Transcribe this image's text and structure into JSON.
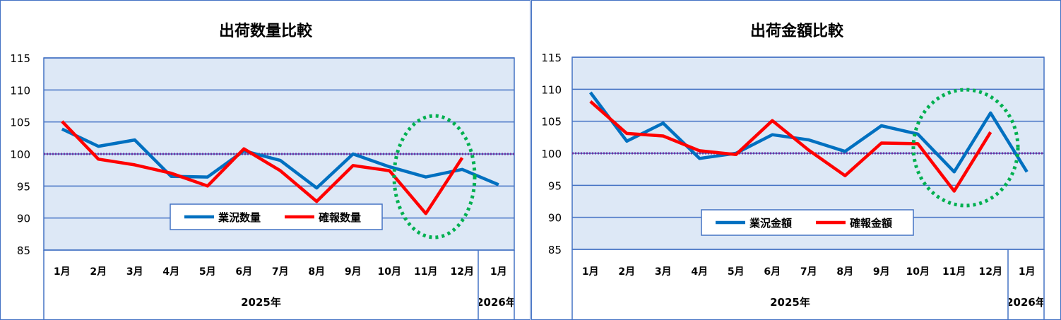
{
  "chart_data": [
    {
      "type": "line",
      "title": "出荷数量比較",
      "categories": [
        "1月",
        "2月",
        "3月",
        "4月",
        "5月",
        "6月",
        "7月",
        "8月",
        "9月",
        "10月",
        "11月",
        "12月",
        "1月"
      ],
      "year_groups": [
        {
          "label": "2025年",
          "count": 12
        },
        {
          "label": "2026年",
          "count": 1
        }
      ],
      "ylim": [
        85,
        115
      ],
      "yticks": [
        85,
        90,
        95,
        100,
        105,
        110,
        115
      ],
      "reference_line": 100,
      "grid": true,
      "legend": "bottom-center",
      "series": [
        {
          "name": "業況数量",
          "color": "#0070c0",
          "values": [
            103.9,
            101.2,
            102.2,
            96.5,
            96.4,
            100.5,
            99.0,
            94.7,
            100.0,
            98.0,
            96.4,
            97.6,
            95.2
          ]
        },
        {
          "name": "確報数量",
          "color": "#ff0000",
          "values": [
            105.1,
            99.2,
            98.3,
            97.0,
            95.0,
            100.8,
            97.4,
            92.6,
            98.2,
            97.4,
            90.7,
            99.4,
            null
          ]
        }
      ],
      "highlight": {
        "from_index": 10,
        "to_index": 11,
        "color": "#00b050"
      }
    },
    {
      "type": "line",
      "title": "出荷金額比較",
      "categories": [
        "1月",
        "2月",
        "3月",
        "4月",
        "5月",
        "6月",
        "7月",
        "8月",
        "9月",
        "10月",
        "11月",
        "12月",
        "1月"
      ],
      "year_groups": [
        {
          "label": "2025年",
          "count": 12
        },
        {
          "label": "2026年",
          "count": 1
        }
      ],
      "ylim": [
        85,
        115
      ],
      "yticks": [
        85,
        90,
        95,
        100,
        105,
        110,
        115
      ],
      "reference_line": 100,
      "grid": true,
      "legend": "bottom-center",
      "series": [
        {
          "name": "業況金額",
          "color": "#0070c0",
          "values": [
            109.5,
            101.9,
            104.7,
            99.2,
            100.0,
            102.9,
            102.1,
            100.3,
            104.3,
            103.0,
            97.1,
            106.3,
            97.1
          ]
        },
        {
          "name": "確報金額",
          "color": "#ff0000",
          "values": [
            108.1,
            103.1,
            102.7,
            100.4,
            99.8,
            105.1,
            100.5,
            96.5,
            101.6,
            101.5,
            94.1,
            103.3,
            null
          ]
        }
      ],
      "highlight": {
        "from_index": 10,
        "to_index": 11,
        "color": "#00b050"
      }
    }
  ]
}
